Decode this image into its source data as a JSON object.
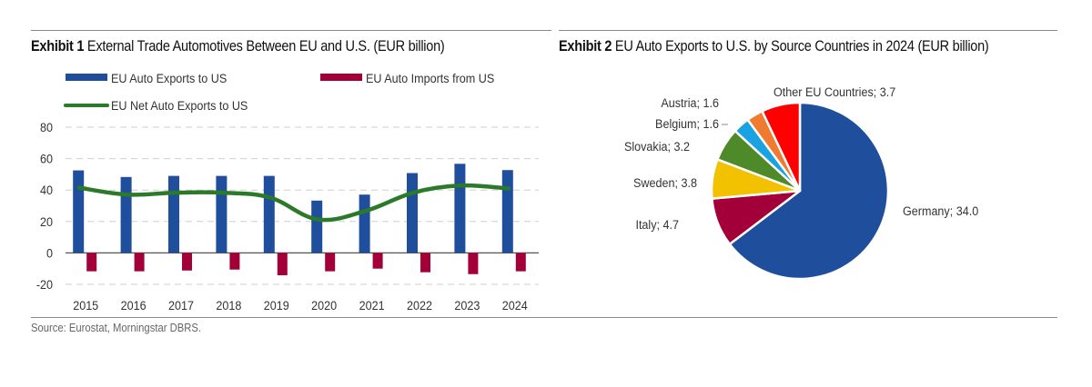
{
  "colors": {
    "exports": "#1f4e9c",
    "imports": "#a3003a",
    "net": "#2a7a2a",
    "grid": "#cfcfcf",
    "axis": "#555555",
    "text": "#333333"
  },
  "exhibit1": {
    "label": "Exhibit 1",
    "title": "External Trade Automotives Between EU and U.S. (EUR billion)"
  },
  "exhibit2": {
    "label": "Exhibit 2",
    "title": "EU Auto Exports to U.S. by Source Countries in 2024 (EUR billion)"
  },
  "source": "Source: Eurostat, Morningstar DBRS.",
  "chart_data": [
    {
      "type": "bar",
      "title": "External Trade Automotives Between EU and U.S. (EUR billion)",
      "xlabel": "",
      "ylabel": "",
      "categories": [
        "2015",
        "2016",
        "2017",
        "2018",
        "2019",
        "2020",
        "2021",
        "2022",
        "2023",
        "2024"
      ],
      "series": [
        {
          "name": "EU Auto Exports to US",
          "kind": "bar",
          "color": "#1f4e9c",
          "values": [
            52.5,
            48.3,
            49.0,
            49.0,
            49.0,
            33.3,
            37.1,
            50.8,
            56.7,
            52.7
          ]
        },
        {
          "name": "EU Auto Imports from US",
          "kind": "bar",
          "color": "#a3003a",
          "values": [
            -11.7,
            -11.7,
            -11.2,
            -10.6,
            -14.2,
            -11.7,
            -10.0,
            -12.3,
            -13.5,
            -11.7
          ]
        },
        {
          "name": "EU Net Auto Exports to US",
          "kind": "line",
          "color": "#2a7a2a",
          "values": [
            41.5,
            37.1,
            38.3,
            38.3,
            35.2,
            21.3,
            26.7,
            38.3,
            42.9,
            41.0
          ]
        }
      ],
      "ylim": [
        -20,
        80
      ],
      "yticks": [
        -20,
        0,
        20,
        40,
        60,
        80
      ],
      "grid": true,
      "legend": "top"
    },
    {
      "type": "pie",
      "title": "EU Auto Exports to U.S. by Source Countries in 2024 (EUR billion)",
      "slices": [
        {
          "label": "Germany",
          "value": 34.0,
          "display": "Germany;  34.0",
          "color": "#1f4e9c"
        },
        {
          "label": "Italy",
          "value": 4.7,
          "display": "Italy;  4.7",
          "color": "#a3003a"
        },
        {
          "label": "Sweden",
          "value": 3.8,
          "display": "Sweden;  3.8",
          "color": "#f2c200"
        },
        {
          "label": "Slovakia",
          "value": 3.2,
          "display": "Slovakia;  3.2",
          "color": "#4e8a2a"
        },
        {
          "label": "Belgium",
          "value": 1.6,
          "display": "Belgium;  1.6",
          "color": "#1aa3e0"
        },
        {
          "label": "Austria",
          "value": 1.6,
          "display": "Austria;  1.6",
          "color": "#ee7b30"
        },
        {
          "label": "Other EU Countries",
          "value": 3.7,
          "display": "Other EU Countries;  3.7",
          "color": "#ff0000"
        }
      ],
      "start": "12 o'clock",
      "direction": "clockwise"
    }
  ]
}
